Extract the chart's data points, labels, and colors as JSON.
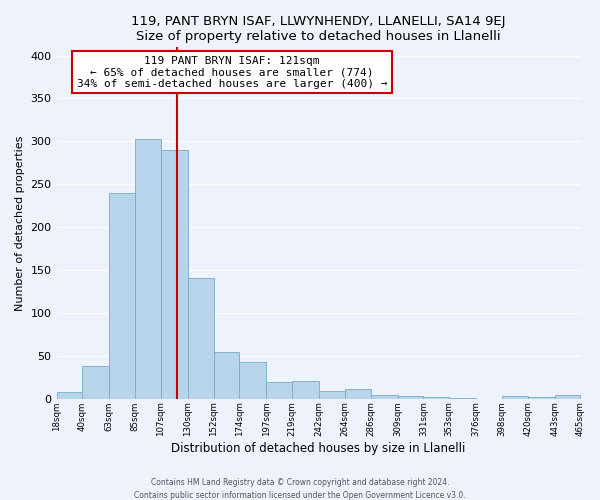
{
  "title": "119, PANT BRYN ISAF, LLWYNHENDY, LLANELLI, SA14 9EJ",
  "subtitle": "Size of property relative to detached houses in Llanelli",
  "xlabel": "Distribution of detached houses by size in Llanelli",
  "ylabel": "Number of detached properties",
  "bar_color": "#b8d4ea",
  "bar_edge_color": "#7aaac8",
  "bin_edges": [
    18,
    40,
    63,
    85,
    107,
    130,
    152,
    174,
    197,
    219,
    242,
    264,
    286,
    309,
    331,
    353,
    376,
    398,
    420,
    443,
    465
  ],
  "bin_labels": [
    "18sqm",
    "40sqm",
    "63sqm",
    "85sqm",
    "107sqm",
    "130sqm",
    "152sqm",
    "174sqm",
    "197sqm",
    "219sqm",
    "242sqm",
    "264sqm",
    "286sqm",
    "309sqm",
    "331sqm",
    "353sqm",
    "376sqm",
    "398sqm",
    "420sqm",
    "443sqm",
    "465sqm"
  ],
  "counts": [
    8,
    38,
    240,
    303,
    290,
    141,
    55,
    43,
    20,
    21,
    9,
    11,
    5,
    3,
    2,
    1,
    0,
    3,
    2,
    4
  ],
  "vline_x": 121,
  "vline_color": "#cc0000",
  "annotation_lines": [
    "119 PANT BRYN ISAF: 121sqm",
    "← 65% of detached houses are smaller (774)",
    "34% of semi-detached houses are larger (400) →"
  ],
  "annotation_box_color": "#ffffff",
  "annotation_box_edge": "#cc0000",
  "ylim": [
    0,
    410
  ],
  "footer1": "Contains HM Land Registry data © Crown copyright and database right 2024.",
  "footer2": "Contains public sector information licensed under the Open Government Licence v3.0.",
  "bg_color": "#eef2fa",
  "title_fontsize": 10,
  "subtitle_fontsize": 9
}
